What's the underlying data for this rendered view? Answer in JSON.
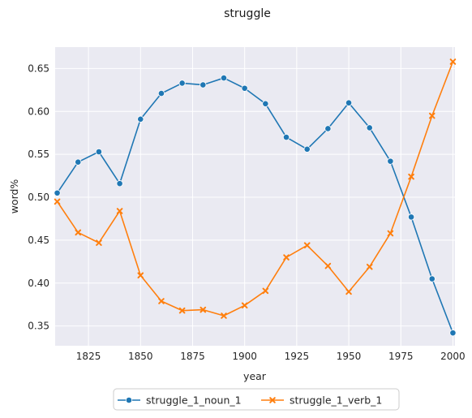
{
  "chart_data": {
    "type": "line",
    "title": "struggle",
    "xlabel": "year",
    "ylabel": "word%",
    "xlim": [
      1809,
      2001
    ],
    "ylim": [
      0.327,
      0.675
    ],
    "x_ticks": [
      1825,
      1850,
      1875,
      1900,
      1925,
      1950,
      1975,
      2000
    ],
    "x_tick_labels": [
      "1825",
      "1850",
      "1875",
      "1900",
      "1925",
      "1950",
      "1975",
      "2000"
    ],
    "y_ticks": [
      0.35,
      0.4,
      0.45,
      0.5,
      0.55,
      0.6,
      0.65
    ],
    "y_tick_labels": [
      "0.35",
      "0.40",
      "0.45",
      "0.50",
      "0.55",
      "0.60",
      "0.65"
    ],
    "grid": true,
    "legend_position": "bottom-center",
    "x": [
      1810,
      1820,
      1830,
      1840,
      1850,
      1860,
      1870,
      1880,
      1890,
      1900,
      1910,
      1920,
      1930,
      1940,
      1950,
      1960,
      1970,
      1980,
      1990,
      2000
    ],
    "series": [
      {
        "name": "struggle_1_noun_1",
        "color": "#1f77b4",
        "marker": "circle",
        "values": [
          0.505,
          0.541,
          0.553,
          0.516,
          0.591,
          0.621,
          0.633,
          0.631,
          0.639,
          0.627,
          0.609,
          0.57,
          0.556,
          0.58,
          0.61,
          0.581,
          0.542,
          0.477,
          0.405,
          0.342
        ]
      },
      {
        "name": "struggle_1_verb_1",
        "color": "#ff7f0e",
        "marker": "x",
        "values": [
          0.495,
          0.459,
          0.447,
          0.484,
          0.409,
          0.379,
          0.368,
          0.369,
          0.362,
          0.374,
          0.391,
          0.43,
          0.444,
          0.42,
          0.39,
          0.419,
          0.458,
          0.524,
          0.595,
          0.658
        ]
      }
    ]
  }
}
